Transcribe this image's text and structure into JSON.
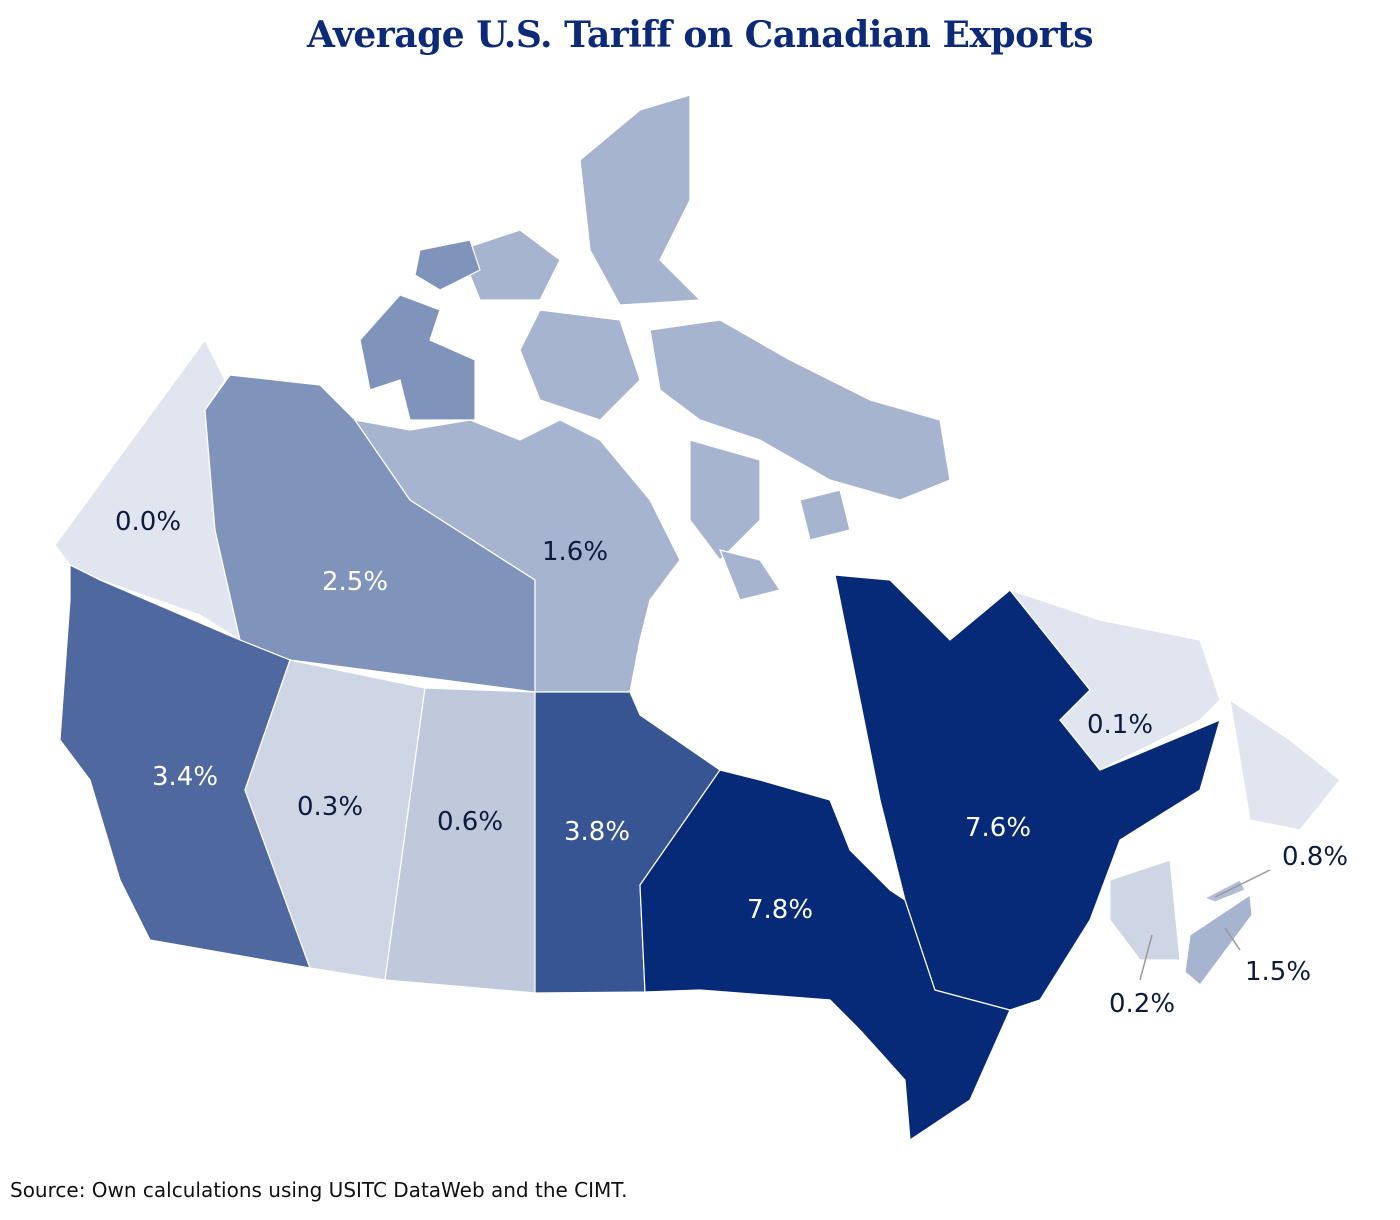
{
  "title": "Average U.S. Tariff on Canadian Exports",
  "source": "Source: Own calculations using USITC DataWeb and the CIMT.",
  "colors": {
    "title": "#0c2a77",
    "dark_label": "#0d1b3d",
    "light_label": "#ffffff"
  },
  "chart_data": {
    "type": "choropleth",
    "title": "Average U.S. Tariff on Canadian Exports",
    "unit": "%",
    "regions": [
      {
        "name": "Yukon",
        "value": 0.0,
        "label": "0.0%",
        "color": "#e1e5ef"
      },
      {
        "name": "Northwest Territories",
        "value": 2.5,
        "label": "2.5%",
        "color": "#8093bb"
      },
      {
        "name": "Nunavut",
        "value": 1.6,
        "label": "1.6%",
        "color": "#a7b4d0"
      },
      {
        "name": "British Columbia",
        "value": 3.4,
        "label": "3.4%",
        "color": "#5068a0"
      },
      {
        "name": "Alberta",
        "value": 0.3,
        "label": "0.3%",
        "color": "#ced5e4"
      },
      {
        "name": "Saskatchewan",
        "value": 0.6,
        "label": "0.6%",
        "color": "#c0c8dc"
      },
      {
        "name": "Manitoba",
        "value": 3.8,
        "label": "3.8%",
        "color": "#365592"
      },
      {
        "name": "Ontario",
        "value": 7.8,
        "label": "7.8%",
        "color": "#062a78"
      },
      {
        "name": "Quebec",
        "value": 7.6,
        "label": "7.6%",
        "color": "#062a78"
      },
      {
        "name": "Newfoundland and Labrador",
        "value": 0.1,
        "label": "0.1%",
        "color": "#e1e5ef"
      },
      {
        "name": "Prince Edward Island",
        "value": 0.8,
        "label": "0.8%",
        "color": "#b3bed6"
      },
      {
        "name": "Nova Scotia",
        "value": 1.5,
        "label": "1.5%",
        "color": "#a7b4d0"
      },
      {
        "name": "New Brunswick",
        "value": 0.2,
        "label": "0.2%",
        "color": "#ced5e4"
      }
    ]
  }
}
